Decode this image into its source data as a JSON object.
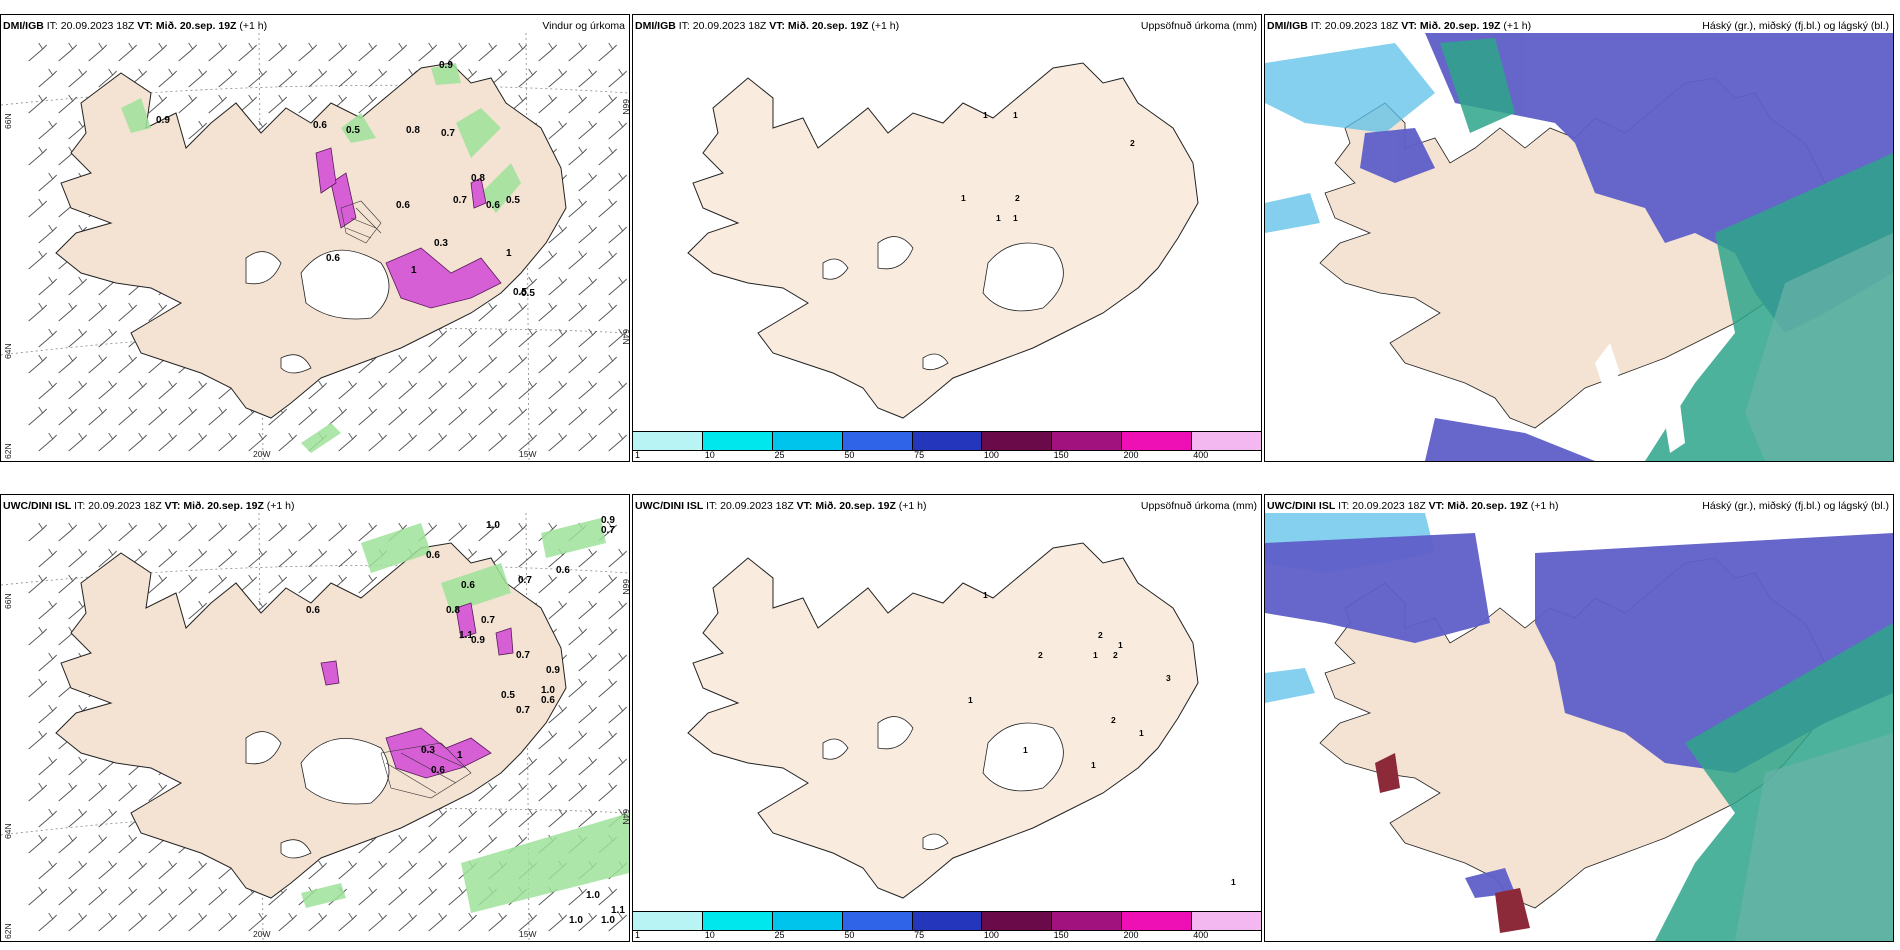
{
  "panels": [
    {
      "id": "dmi-wind",
      "source": "DMI/IGB",
      "it": "IT: 20.09.2023 18Z",
      "vt": "VT: Mið. 20.sep. 19Z",
      "lead": "(+1 h)",
      "title": "Vindur og úrkoma",
      "axis": {
        "lat_top": "66N",
        "lat_mid": "64N",
        "lat_bot": "62N",
        "lat_right_top": "66N",
        "lat_right_mid": "64N",
        "lon_left": "20W",
        "lon_right": "15W"
      },
      "values": [
        "0.9",
        "0.9",
        "0.6",
        "0.5",
        "0.8",
        "0.7",
        "0.8",
        "0.5",
        "1",
        "0.6",
        "0.5",
        "0.3",
        "1",
        "0.7",
        "0.6",
        "0.6",
        "0.5"
      ]
    },
    {
      "id": "dmi-accum",
      "source": "DMI/IGB",
      "it": "IT: 20.09.2023 18Z",
      "vt": "VT: Mið. 20.sep. 19Z",
      "lead": "(+1 h)",
      "title": "Uppsöfnuð úrkoma (mm)",
      "values": [
        "1",
        "1",
        "1",
        "2",
        "1",
        "2",
        "1"
      ]
    },
    {
      "id": "dmi-cloud",
      "source": "DMI/IGB",
      "it": "IT: 20.09.2023 18Z",
      "vt": "VT: Mið. 20.sep. 19Z",
      "lead": "(+1 h)",
      "title": "Háský (gr.), miðský (fj.bl.) og lágský (bl.)"
    },
    {
      "id": "uwc-wind",
      "source": "UWC/DINI ISL",
      "it": "IT: 20.09.2023 18Z",
      "vt": "VT: Mið. 20.sep. 19Z",
      "lead": "(+1 h)",
      "title": "",
      "axis": {
        "lat_top": "66N",
        "lat_mid": "64N",
        "lat_bot": "62N",
        "lat_right_top": "66N",
        "lat_right_mid": "64N",
        "lon_left": "20W",
        "lon_right": "15W"
      },
      "values": [
        "1.0",
        "0.9",
        "0.7",
        "0.6",
        "0.7",
        "0.6",
        "0.8",
        "0.6",
        "0.7",
        "0.6",
        "1.1",
        "0.9",
        "0.7",
        "1.0",
        "0.9",
        "0.6",
        "0.5",
        "0.3",
        "0.6",
        "1",
        "0.7",
        "1.0",
        "1.0",
        "1.0",
        "1.1"
      ]
    },
    {
      "id": "uwc-accum",
      "source": "UWC/DINI ISL",
      "it": "IT: 20.09.2023 18Z",
      "vt": "VT: Mið. 20.sep. 19Z",
      "lead": "(+1 h)",
      "title": "Uppsöfnuð úrkoma (mm)",
      "values": [
        "1",
        "2",
        "1",
        "2",
        "1",
        "1",
        "2",
        "3",
        "2",
        "1",
        "1",
        "1",
        "1"
      ]
    },
    {
      "id": "uwc-cloud",
      "source": "UWC/DINI ISL",
      "it": "IT: 20.09.2023 18Z",
      "vt": "VT: Mið. 20.sep. 19Z",
      "lead": "(+1 h)",
      "title": "Háský (gr.), miðský (fj.bl.) og lágský (bl.)"
    }
  ],
  "colorbar": {
    "colors": [
      "#b8f4f4",
      "#00e8ee",
      "#00c4ec",
      "#2f64e8",
      "#2436bc",
      "#6a0a48",
      "#a2127e",
      "#ee10b4",
      "#f4b8f0"
    ],
    "labels": [
      "1",
      "10",
      "25",
      "50",
      "75",
      "100",
      "150",
      "200",
      "400"
    ]
  },
  "colors": {
    "land": "#f9ecdf",
    "precip_green": "#9ee29a",
    "precip_magenta": "#d65fd6",
    "cloud_high": "#6462c8",
    "cloud_mid": "#2ea48a",
    "cloud_low": "#56aec0"
  }
}
